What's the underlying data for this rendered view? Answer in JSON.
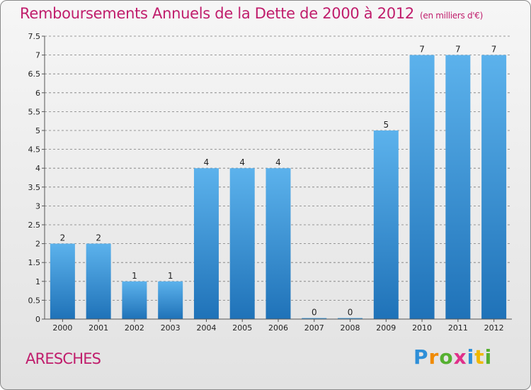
{
  "title": "Remboursements Annuels de la Dette de 2000 à 2012",
  "unit": "(en milliers d'€)",
  "commune": "ARESCHES",
  "logo": {
    "text": "Proxiti",
    "letters": [
      {
        "ch": "P",
        "color": "#2e8fd8"
      },
      {
        "ch": "r",
        "color": "#f08a00"
      },
      {
        "ch": "o",
        "color": "#55b030"
      },
      {
        "ch": "x",
        "color": "#e0308a"
      },
      {
        "ch": "i",
        "color": "#2e8fd8"
      },
      {
        "ch": "t",
        "color": "#f0b800"
      },
      {
        "ch": "i",
        "color": "#55b030"
      }
    ]
  },
  "colors": {
    "title": "#c01d6c",
    "bar_top": "#5cb2ec",
    "bar_bottom": "#1f72b8",
    "grid": "#7a7a7a"
  },
  "chart_data": {
    "type": "bar",
    "categories": [
      "2000",
      "2001",
      "2002",
      "2003",
      "2004",
      "2005",
      "2006",
      "2007",
      "2008",
      "2009",
      "2010",
      "2011",
      "2012"
    ],
    "values": [
      2,
      2,
      1,
      1,
      4,
      4,
      4,
      0,
      0,
      5,
      7,
      7,
      7
    ],
    "value_labels": [
      "2",
      "2",
      "1",
      "1",
      "4",
      "4",
      "4",
      "0",
      "0",
      "5",
      "7",
      "7",
      "7"
    ],
    "ylim": [
      0,
      7.5
    ],
    "yticks": [
      0,
      0.5,
      1,
      1.5,
      2,
      2.5,
      3,
      3.5,
      4,
      4.5,
      5,
      5.5,
      6,
      6.5,
      7,
      7.5
    ],
    "ytick_labels": [
      "0",
      "0.5",
      "1",
      "1.5",
      "2",
      "2.5",
      "3",
      "3.5",
      "4",
      "4.5",
      "5",
      "5.5",
      "6",
      "6.5",
      "7",
      "7.5"
    ],
    "grid": true,
    "grid_style": "dashed horizontal"
  }
}
